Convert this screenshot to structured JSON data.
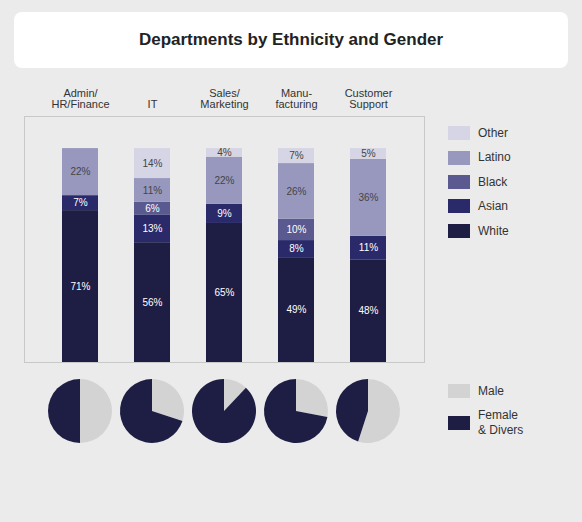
{
  "chart_data": [
    {
      "type": "bar",
      "title": "Departments by Ethnicity and Gender",
      "categories": [
        "Admin/\nHR/Finance",
        "IT",
        "Sales/\nMarketing",
        "Manu-\nfacturing",
        "Customer\nSupport"
      ],
      "series": [
        {
          "name": "White",
          "color": "#1E1E45",
          "values": [
            71,
            56,
            65,
            49,
            48
          ],
          "value_labels": [
            "71%",
            "56%",
            "65%",
            "49%",
            "48%"
          ]
        },
        {
          "name": "Asian",
          "color": "#2A2A6A",
          "values": [
            7,
            13,
            9,
            8,
            11
          ],
          "value_labels": [
            "7%",
            "13%",
            "9%",
            "8%",
            "11%"
          ]
        },
        {
          "name": "Black",
          "color": "#5A5A90",
          "values": [
            0,
            6,
            0,
            10,
            0
          ],
          "value_labels": [
            null,
            "6%",
            null,
            "10%",
            null
          ]
        },
        {
          "name": "Latino",
          "color": "#9898BE",
          "values": [
            22,
            11,
            22,
            26,
            36
          ],
          "value_labels": [
            "22%",
            "11%",
            "22%",
            "26%",
            "36%"
          ]
        },
        {
          "name": "Other",
          "color": "#D5D5E5",
          "values": [
            0,
            14,
            4,
            7,
            5
          ],
          "value_labels": [
            null,
            "14%",
            "4%",
            "7%",
            "5%"
          ]
        }
      ],
      "stacked": true,
      "data_labels": true,
      "ylim": [
        0,
        115
      ],
      "tick_labels": "x",
      "legend": "right"
    },
    {
      "type": "pie",
      "categories": [
        "Male",
        "Female\n& Divers"
      ],
      "values": [
        50,
        50
      ],
      "colors": [
        "#D3D3D3",
        "#1E1E45"
      ],
      "legend": "right"
    },
    {
      "type": "pie",
      "categories": [
        "Male",
        "Female\n& Divers"
      ],
      "values": [
        30,
        70
      ],
      "colors": [
        "#D3D3D3",
        "#1E1E45"
      ],
      "legend": "right"
    },
    {
      "type": "pie",
      "categories": [
        "Male",
        "Female\n& Divers"
      ],
      "values": [
        12,
        88
      ],
      "colors": [
        "#D3D3D3",
        "#1E1E45"
      ],
      "legend": "right"
    },
    {
      "type": "pie",
      "categories": [
        "Male",
        "Female\n& Divers"
      ],
      "values": [
        28,
        72
      ],
      "colors": [
        "#D3D3D3",
        "#1E1E45"
      ],
      "legend": "right"
    },
    {
      "type": "pie",
      "categories": [
        "Male",
        "Female\n& Divers"
      ],
      "values": [
        55,
        45
      ],
      "colors": [
        "#D3D3D3",
        "#1E1E45"
      ],
      "legend": "right"
    }
  ]
}
